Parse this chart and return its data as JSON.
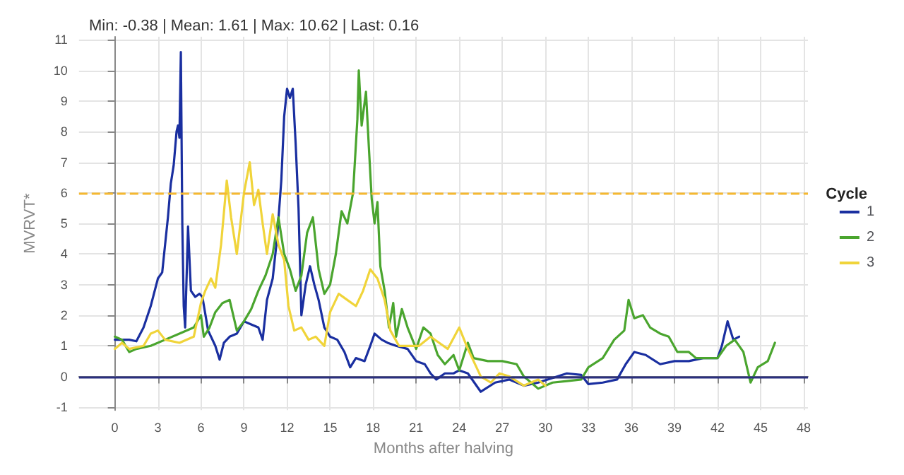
{
  "chart_data": {
    "type": "line",
    "subtitle": "Min: -0.38 | Mean: 1.61 | Max: 10.62 | Last: 0.16",
    "xlabel": "Months after halving",
    "ylabel": "MVRVT*",
    "legend_title": "Cycle",
    "legend": "right",
    "grid": true,
    "marker": "none",
    "line_style": "solid",
    "xlim": [
      -2.5,
      48.3
    ],
    "xticks": [
      0,
      3,
      6,
      9,
      12,
      15,
      18,
      21,
      24,
      27,
      30,
      33,
      36,
      39,
      42,
      45,
      48
    ],
    "ylim": [
      -1.1,
      11.1
    ],
    "yticks": [
      -1,
      0,
      1,
      2,
      3,
      4,
      5,
      6,
      7,
      8,
      9,
      10,
      11
    ],
    "ref_lines": [
      {
        "axis": "y",
        "value": 6,
        "color": "#f5b830",
        "line_style": "dashed"
      },
      {
        "axis": "y",
        "value": 0,
        "color": "#2b3080",
        "line_style": "solid"
      }
    ],
    "series": [
      {
        "name": "1",
        "color": "#1a2fa0",
        "x": [
          0,
          1,
          1.5,
          2,
          2.5,
          3,
          3.3,
          3.5,
          3.7,
          3.9,
          4.1,
          4.3,
          4.4,
          4.5,
          4.6,
          4.7,
          4.8,
          4.9,
          5.1,
          5.3,
          5.6,
          5.9,
          6.1,
          6.5,
          7,
          7.3,
          7.6,
          8,
          8.5,
          9,
          9.5,
          10,
          10.3,
          10.6,
          11,
          11.3,
          11.6,
          11.8,
          12,
          12.2,
          12.4,
          12.6,
          12.8,
          13,
          13.3,
          13.6,
          13.9,
          14.2,
          14.6,
          15,
          15.5,
          16,
          16.4,
          16.8,
          17.4,
          17.8,
          18.1,
          18.6,
          19,
          19.6,
          20.4,
          21,
          21.6,
          22,
          22.4,
          23,
          23.6,
          24,
          24.6,
          25.5,
          26.5,
          27.5,
          28.5,
          29.5,
          30.5,
          31.5,
          32.5,
          33,
          34,
          35,
          35.6,
          36.2,
          37,
          38,
          39,
          40,
          41,
          42,
          42.3,
          42.7,
          43.1,
          43.5
        ],
        "values": [
          1.2,
          1.2,
          1.15,
          1.6,
          2.3,
          3.2,
          3.4,
          4.3,
          5.2,
          6.3,
          6.9,
          8,
          8.2,
          7.8,
          10.6,
          5,
          2.3,
          1.6,
          4.9,
          2.8,
          2.6,
          2.7,
          2.6,
          1.5,
          1,
          0.55,
          1.1,
          1.3,
          1.4,
          1.8,
          1.7,
          1.6,
          1.2,
          2.5,
          3.2,
          4.5,
          6.4,
          8.5,
          9.4,
          9.1,
          9.4,
          7.6,
          5.5,
          2,
          3,
          3.6,
          3,
          2.5,
          1.6,
          1.3,
          1.2,
          0.8,
          0.3,
          0.6,
          0.5,
          1,
          1.4,
          1.2,
          1.1,
          1,
          0.9,
          0.5,
          0.4,
          0.1,
          -0.1,
          0.1,
          0.1,
          0.2,
          0.1,
          -0.5,
          -0.2,
          -0.1,
          -0.3,
          -0.2,
          -0.05,
          0.1,
          0.05,
          -0.25,
          -0.2,
          -0.1,
          0.4,
          0.8,
          0.7,
          0.4,
          0.5,
          0.5,
          0.6,
          0.6,
          1,
          1.8,
          1.2,
          1.3
        ]
      },
      {
        "name": "2",
        "color": "#4aa52e",
        "x": [
          0,
          0.5,
          1,
          1.5,
          2.5,
          3.5,
          4.5,
          5.5,
          6,
          6.2,
          6.6,
          7,
          7.5,
          8,
          8.5,
          9,
          9.5,
          10,
          10.5,
          11,
          11.4,
          11.8,
          12.2,
          12.6,
          13,
          13.4,
          13.8,
          14.2,
          14.6,
          15,
          15.4,
          15.8,
          16.2,
          16.6,
          16.9,
          17,
          17.2,
          17.5,
          17.7,
          17.9,
          18.1,
          18.3,
          18.5,
          18.8,
          19.1,
          19.4,
          19.6,
          20,
          20.4,
          21,
          21.5,
          22,
          22.5,
          23,
          23.6,
          24,
          24.6,
          25,
          26,
          27,
          28,
          28.5,
          29.5,
          30.5,
          31.5,
          32.5,
          33,
          34,
          34.8,
          35.5,
          35.8,
          36.2,
          36.8,
          37.3,
          38,
          38.6,
          39.2,
          40,
          40.5,
          41.5,
          42,
          42.6,
          43.2,
          43.8,
          44.3,
          44.8,
          45.5,
          46
        ],
        "values": [
          1.3,
          1.2,
          0.8,
          0.9,
          1,
          1.2,
          1.4,
          1.6,
          2,
          1.3,
          1.6,
          2.1,
          2.4,
          2.5,
          1.5,
          1.8,
          2.2,
          2.8,
          3.3,
          4,
          5.2,
          4,
          3.5,
          2.8,
          3.3,
          4.7,
          5.2,
          3.5,
          2.7,
          3,
          4,
          5.4,
          5,
          6,
          8.4,
          10,
          8.2,
          9.3,
          7.5,
          5.8,
          5,
          5.7,
          3.6,
          2.8,
          1.6,
          2.4,
          1.3,
          2.2,
          1.6,
          0.9,
          1.6,
          1.4,
          0.7,
          0.4,
          0.7,
          0.2,
          1.1,
          0.6,
          0.5,
          0.5,
          0.4,
          0,
          -0.4,
          -0.2,
          -0.15,
          -0.1,
          0.3,
          0.6,
          1.2,
          1.5,
          2.5,
          1.9,
          2,
          1.6,
          1.4,
          1.3,
          0.8,
          0.8,
          0.6,
          0.6,
          0.6,
          1,
          1.2,
          0.8,
          -0.2,
          0.3,
          0.5,
          1.1
        ]
      },
      {
        "name": "3",
        "color": "#f0d43a",
        "x": [
          0,
          0.5,
          1,
          2,
          2.5,
          3,
          3.5,
          4.5,
          5.5,
          6,
          6.3,
          6.7,
          7,
          7.4,
          7.8,
          8.1,
          8.5,
          9,
          9.4,
          9.7,
          10,
          10.3,
          10.6,
          11,
          11.4,
          11.8,
          12.1,
          12.5,
          13,
          13.5,
          14,
          14.6,
          15,
          15.6,
          16.2,
          16.8,
          17.3,
          17.8,
          18.3,
          18.8,
          19.2,
          19.8,
          20.5,
          21.2,
          22,
          22.6,
          23.2,
          24,
          24.6,
          25,
          25.5,
          26.2,
          26.8,
          27.5,
          28.5,
          29.5,
          30
        ],
        "values": [
          0.9,
          1.1,
          0.9,
          1,
          1.4,
          1.5,
          1.2,
          1.1,
          1.3,
          2.4,
          2.8,
          3.2,
          2.9,
          4.3,
          6.4,
          5.2,
          4,
          6,
          7,
          5.6,
          6.1,
          5,
          4,
          5.3,
          4.3,
          3.8,
          2.3,
          1.5,
          1.6,
          1.2,
          1.3,
          1,
          2.1,
          2.7,
          2.5,
          2.3,
          2.8,
          3.5,
          3.2,
          2.5,
          1.5,
          1,
          1,
          1,
          1.3,
          1.1,
          0.9,
          1.6,
          0.9,
          0.5,
          0,
          -0.2,
          0.1,
          0,
          -0.3,
          -0.1,
          -0.3
        ]
      }
    ]
  }
}
